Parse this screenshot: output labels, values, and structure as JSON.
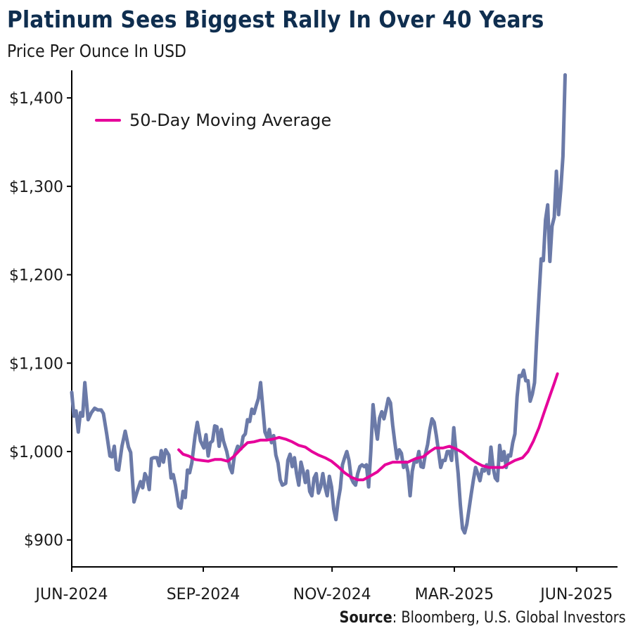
{
  "header": {
    "title": "Platinum Sees Biggest Rally In Over 40 Years",
    "subtitle": "Price Per Ounce In USD"
  },
  "footer": {
    "source_label": "Source",
    "source_text": ": Bloomberg, U.S. Global Investors"
  },
  "colors": {
    "price_line": "#6b7aa8",
    "moving_average": "#e6009a",
    "title": "#0f2e4f",
    "axis": "#000000"
  },
  "chart_data": {
    "type": "line",
    "title": "Platinum Sees Biggest Rally In Over 40 Years",
    "subtitle": "Price Per Ounce In USD",
    "xlabel": "",
    "ylabel": "",
    "ylim": [
      880,
      1430
    ],
    "x_axis": {
      "range": [
        0,
        1
      ],
      "ticks": [
        {
          "pos": 0.0,
          "label": "JUN-2024"
        },
        {
          "pos": 0.241,
          "label": "SEP-2024"
        },
        {
          "pos": 0.477,
          "label": "NOV-2024"
        },
        {
          "pos": 0.701,
          "label": "MAR-2025"
        },
        {
          "pos": 0.925,
          "label": "JUN-2025"
        }
      ]
    },
    "y_axis": {
      "ticks": [
        900,
        1000,
        1100,
        1200,
        1300,
        1400
      ],
      "tick_labels": [
        "$900",
        "$1,000",
        "$1,100",
        "$1,200",
        "$1,300",
        "$1,400"
      ]
    },
    "grid": false,
    "legend": {
      "position": "top-left",
      "entries": [
        {
          "name": "50-Day Moving Average",
          "series": "ma50"
        }
      ]
    },
    "series": [
      {
        "name": "Platinum Price",
        "key": "price",
        "points": [
          [
            0.0,
            1067
          ],
          [
            0.004,
            1040
          ],
          [
            0.008,
            1046
          ],
          [
            0.012,
            1022
          ],
          [
            0.016,
            1044
          ],
          [
            0.02,
            1040
          ],
          [
            0.024,
            1078
          ],
          [
            0.03,
            1036
          ],
          [
            0.036,
            1044
          ],
          [
            0.042,
            1049
          ],
          [
            0.048,
            1047
          ],
          [
            0.054,
            1047
          ],
          [
            0.058,
            1043
          ],
          [
            0.064,
            1020
          ],
          [
            0.07,
            995
          ],
          [
            0.074,
            994
          ],
          [
            0.078,
            1006
          ],
          [
            0.082,
            980
          ],
          [
            0.086,
            979
          ],
          [
            0.092,
            1006
          ],
          [
            0.098,
            1023
          ],
          [
            0.104,
            1005
          ],
          [
            0.108,
            999
          ],
          [
            0.114,
            943
          ],
          [
            0.12,
            955
          ],
          [
            0.126,
            966
          ],
          [
            0.13,
            959
          ],
          [
            0.134,
            975
          ],
          [
            0.138,
            970
          ],
          [
            0.142,
            957
          ],
          [
            0.146,
            992
          ],
          [
            0.15,
            993
          ],
          [
            0.156,
            993
          ],
          [
            0.16,
            984
          ],
          [
            0.164,
            1001
          ],
          [
            0.168,
            988
          ],
          [
            0.172,
            1002
          ],
          [
            0.178,
            996
          ],
          [
            0.182,
            970
          ],
          [
            0.186,
            974
          ],
          [
            0.19,
            962
          ],
          [
            0.196,
            938
          ],
          [
            0.2,
            936
          ],
          [
            0.204,
            955
          ],
          [
            0.208,
            948
          ],
          [
            0.212,
            979
          ],
          [
            0.216,
            976
          ],
          [
            0.22,
            987
          ],
          [
            0.226,
            1018
          ],
          [
            0.23,
            1033
          ],
          [
            0.236,
            1012
          ],
          [
            0.242,
            1004
          ],
          [
            0.246,
            1019
          ],
          [
            0.25,
            995
          ],
          [
            0.254,
            1010
          ],
          [
            0.258,
            1012
          ],
          [
            0.262,
            1029
          ],
          [
            0.266,
            1028
          ],
          [
            0.27,
            1006
          ],
          [
            0.274,
            1025
          ],
          [
            0.278,
            1012
          ],
          [
            0.284,
            1000
          ],
          [
            0.29,
            982
          ],
          [
            0.294,
            976
          ],
          [
            0.298,
            995
          ],
          [
            0.304,
            1006
          ],
          [
            0.31,
            1003
          ],
          [
            0.314,
            1017
          ],
          [
            0.318,
            1020
          ],
          [
            0.322,
            1036
          ],
          [
            0.326,
            1034
          ],
          [
            0.33,
            1048
          ],
          [
            0.334,
            1043
          ],
          [
            0.338,
            1052
          ],
          [
            0.342,
            1060
          ],
          [
            0.346,
            1078
          ],
          [
            0.35,
            1050
          ],
          [
            0.354,
            1022
          ],
          [
            0.358,
            1016
          ],
          [
            0.362,
            1025
          ],
          [
            0.366,
            1010
          ],
          [
            0.37,
            1018
          ],
          [
            0.374,
            996
          ],
          [
            0.378,
            987
          ],
          [
            0.382,
            968
          ],
          [
            0.386,
            962
          ],
          [
            0.392,
            964
          ],
          [
            0.396,
            990
          ],
          [
            0.4,
            997
          ],
          [
            0.404,
            983
          ],
          [
            0.408,
            993
          ],
          [
            0.412,
            975
          ],
          [
            0.416,
            962
          ],
          [
            0.42,
            988
          ],
          [
            0.424,
            978
          ],
          [
            0.428,
            965
          ],
          [
            0.432,
            978
          ],
          [
            0.436,
            955
          ],
          [
            0.44,
            950
          ],
          [
            0.444,
            970
          ],
          [
            0.448,
            975
          ],
          [
            0.452,
            953
          ],
          [
            0.456,
            960
          ],
          [
            0.46,
            975
          ],
          [
            0.464,
            960
          ],
          [
            0.468,
            950
          ],
          [
            0.472,
            972
          ],
          [
            0.476,
            960
          ],
          [
            0.48,
            935
          ],
          [
            0.484,
            923
          ],
          [
            0.488,
            944
          ],
          [
            0.492,
            958
          ],
          [
            0.496,
            985
          ],
          [
            0.5,
            993
          ],
          [
            0.504,
            1000
          ],
          [
            0.508,
            990
          ],
          [
            0.512,
            970
          ],
          [
            0.516,
            965
          ],
          [
            0.52,
            962
          ],
          [
            0.524,
            975
          ],
          [
            0.528,
            983
          ],
          [
            0.532,
            985
          ],
          [
            0.536,
            983
          ],
          [
            0.54,
            985
          ],
          [
            0.544,
            960
          ],
          [
            0.548,
            1000
          ],
          [
            0.552,
            1053
          ],
          [
            0.556,
            1030
          ],
          [
            0.56,
            1014
          ],
          [
            0.564,
            1038
          ],
          [
            0.568,
            1045
          ],
          [
            0.572,
            1037
          ],
          [
            0.576,
            1048
          ],
          [
            0.58,
            1060
          ],
          [
            0.584,
            1055
          ],
          [
            0.588,
            1030
          ],
          [
            0.592,
            1010
          ],
          [
            0.596,
            992
          ],
          [
            0.6,
            1002
          ],
          [
            0.604,
            998
          ],
          [
            0.608,
            982
          ],
          [
            0.612,
            988
          ],
          [
            0.616,
            977
          ],
          [
            0.62,
            950
          ],
          [
            0.624,
            978
          ],
          [
            0.628,
            990
          ],
          [
            0.632,
            988
          ],
          [
            0.636,
            1000
          ],
          [
            0.64,
            983
          ],
          [
            0.644,
            982
          ],
          [
            0.648,
            997
          ],
          [
            0.652,
            1008
          ],
          [
            0.656,
            1025
          ],
          [
            0.66,
            1037
          ],
          [
            0.664,
            1033
          ],
          [
            0.668,
            1018
          ],
          [
            0.672,
            1000
          ],
          [
            0.676,
            982
          ],
          [
            0.68,
            990
          ],
          [
            0.684,
            990
          ],
          [
            0.688,
            1000
          ],
          [
            0.692,
            1000
          ],
          [
            0.696,
            990
          ],
          [
            0.7,
            1027
          ],
          [
            0.704,
            1000
          ],
          [
            0.708,
            975
          ],
          [
            0.712,
            940
          ],
          [
            0.716,
            913
          ],
          [
            0.72,
            908
          ],
          [
            0.724,
            918
          ],
          [
            0.728,
            935
          ],
          [
            0.732,
            952
          ],
          [
            0.736,
            968
          ],
          [
            0.74,
            982
          ],
          [
            0.744,
            975
          ],
          [
            0.748,
            967
          ],
          [
            0.752,
            980
          ],
          [
            0.756,
            978
          ],
          [
            0.76,
            985
          ],
          [
            0.764,
            975
          ],
          [
            0.768,
            1005
          ],
          [
            0.772,
            982
          ],
          [
            0.776,
            970
          ],
          [
            0.78,
            967
          ],
          [
            0.784,
            1007
          ],
          [
            0.788,
            990
          ],
          [
            0.792,
            1000
          ],
          [
            0.796,
            982
          ],
          [
            0.8,
            996
          ],
          [
            0.804,
            995
          ],
          [
            0.808,
            1010
          ],
          [
            0.812,
            1020
          ],
          [
            0.816,
            1062
          ],
          [
            0.82,
            1086
          ],
          [
            0.824,
            1085
          ],
          [
            0.828,
            1092
          ],
          [
            0.832,
            1080
          ],
          [
            0.836,
            1080
          ],
          [
            0.84,
            1057
          ],
          [
            0.844,
            1065
          ],
          [
            0.848,
            1078
          ],
          [
            0.852,
            1130
          ],
          [
            0.856,
            1175
          ],
          [
            0.86,
            1218
          ],
          [
            0.864,
            1216
          ],
          [
            0.868,
            1262
          ],
          [
            0.872,
            1279
          ],
          [
            0.876,
            1215
          ],
          [
            0.88,
            1255
          ],
          [
            0.884,
            1265
          ],
          [
            0.888,
            1317
          ],
          [
            0.892,
            1268
          ],
          [
            0.896,
            1296
          ],
          [
            0.9,
            1334
          ],
          [
            0.904,
            1426
          ]
        ]
      },
      {
        "name": "50-Day Moving Average",
        "key": "ma50",
        "points": [
          [
            0.196,
            1002
          ],
          [
            0.204,
            997
          ],
          [
            0.214,
            995
          ],
          [
            0.226,
            991
          ],
          [
            0.238,
            990
          ],
          [
            0.25,
            989
          ],
          [
            0.262,
            991
          ],
          [
            0.274,
            991
          ],
          [
            0.286,
            989
          ],
          [
            0.298,
            995
          ],
          [
            0.31,
            1003
          ],
          [
            0.322,
            1010
          ],
          [
            0.334,
            1011
          ],
          [
            0.346,
            1013
          ],
          [
            0.358,
            1013
          ],
          [
            0.368,
            1014
          ],
          [
            0.38,
            1016
          ],
          [
            0.392,
            1014
          ],
          [
            0.404,
            1011
          ],
          [
            0.416,
            1007
          ],
          [
            0.428,
            1005
          ],
          [
            0.44,
            1000
          ],
          [
            0.452,
            996
          ],
          [
            0.464,
            993
          ],
          [
            0.476,
            989
          ],
          [
            0.488,
            983
          ],
          [
            0.5,
            976
          ],
          [
            0.512,
            971
          ],
          [
            0.524,
            968
          ],
          [
            0.534,
            968
          ],
          [
            0.546,
            972
          ],
          [
            0.56,
            977
          ],
          [
            0.574,
            985
          ],
          [
            0.588,
            988
          ],
          [
            0.602,
            988
          ],
          [
            0.616,
            988
          ],
          [
            0.63,
            992
          ],
          [
            0.644,
            994
          ],
          [
            0.656,
            1000
          ],
          [
            0.666,
            1004
          ],
          [
            0.68,
            1004
          ],
          [
            0.692,
            1006
          ],
          [
            0.704,
            1003
          ],
          [
            0.716,
            999
          ],
          [
            0.728,
            993
          ],
          [
            0.74,
            988
          ],
          [
            0.752,
            984
          ],
          [
            0.764,
            982
          ],
          [
            0.776,
            982
          ],
          [
            0.79,
            982
          ],
          [
            0.8,
            986
          ],
          [
            0.812,
            990
          ],
          [
            0.826,
            993
          ],
          [
            0.836,
            1000
          ],
          [
            0.846,
            1012
          ],
          [
            0.856,
            1027
          ],
          [
            0.866,
            1045
          ],
          [
            0.876,
            1063
          ],
          [
            0.884,
            1077
          ],
          [
            0.89,
            1088
          ]
        ]
      }
    ]
  }
}
